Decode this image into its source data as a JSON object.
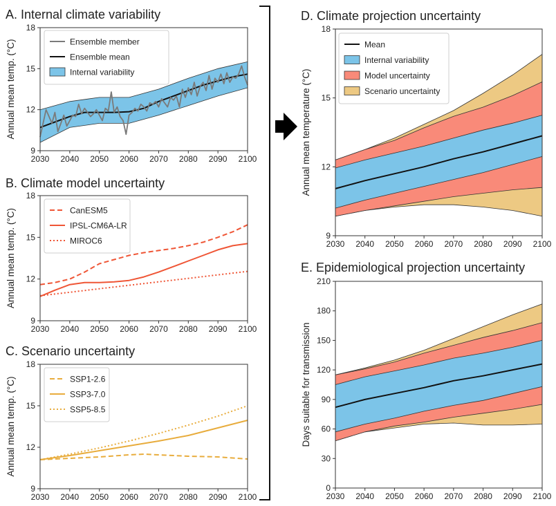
{
  "colors": {
    "internal": "#7cc4e8",
    "model": "#f98a79",
    "scenario": "#edc983",
    "model_line": "#ef5535",
    "scenario_line": "#e8ac3c",
    "member": "#7a7a7a",
    "mean": "#111111"
  },
  "bracket_icon": "bracket",
  "arrow_icon": "right-arrow",
  "chart_data": [
    {
      "id": "A",
      "title": "A. Internal climate variability",
      "type": "line",
      "ylabel": "Annual mean temp. (°C)",
      "xlim": [
        2030,
        2100
      ],
      "ylim": [
        9,
        18
      ],
      "xticks": [
        2030,
        2040,
        2050,
        2060,
        2070,
        2080,
        2090,
        2100
      ],
      "yticks": [
        9,
        12,
        15,
        18
      ],
      "legend_position": "top-left",
      "legend": [
        {
          "label": "Ensemble member",
          "kind": "line",
          "color": "#7a7a7a",
          "dash": "solid"
        },
        {
          "label": "Ensemble mean",
          "kind": "line",
          "color": "#111111",
          "dash": "solid"
        },
        {
          "label": "Internal variability",
          "kind": "patch",
          "color": "#7cc4e8"
        }
      ],
      "bands": [
        {
          "name": "Internal variability",
          "color": "#7cc4e8",
          "x": [
            2030,
            2040,
            2050,
            2060,
            2070,
            2080,
            2090,
            2100
          ],
          "lower": [
            9.6,
            10.7,
            11.0,
            11.0,
            11.6,
            12.3,
            13.0,
            13.6
          ],
          "upper": [
            12.0,
            12.6,
            12.9,
            12.9,
            13.5,
            14.3,
            15.0,
            15.5
          ]
        }
      ],
      "series": [
        {
          "name": "Ensemble mean",
          "color": "#111111",
          "width": 2,
          "dash": "solid",
          "x": [
            2030,
            2035,
            2040,
            2045,
            2050,
            2055,
            2060,
            2065,
            2070,
            2075,
            2080,
            2085,
            2090,
            2095,
            2100
          ],
          "y": [
            10.7,
            11.1,
            11.5,
            11.8,
            11.8,
            11.8,
            11.85,
            12.1,
            12.6,
            13.0,
            13.4,
            13.8,
            14.1,
            14.4,
            14.6
          ]
        },
        {
          "name": "Ensemble member",
          "color": "#7a7a7a",
          "width": 1.8,
          "dash": "solid",
          "x": [
            2030,
            2031,
            2032,
            2033,
            2034,
            2035,
            2036,
            2037,
            2038,
            2039,
            2040,
            2041,
            2042,
            2043,
            2044,
            2045,
            2046,
            2047,
            2048,
            2049,
            2050,
            2051,
            2052,
            2053,
            2054,
            2055,
            2056,
            2057,
            2058,
            2059,
            2060,
            2061,
            2062,
            2063,
            2064,
            2065,
            2066,
            2067,
            2068,
            2069,
            2070,
            2071,
            2072,
            2073,
            2074,
            2075,
            2076,
            2077,
            2078,
            2079,
            2080,
            2081,
            2082,
            2083,
            2084,
            2085,
            2086,
            2087,
            2088,
            2089,
            2090,
            2091,
            2092,
            2093,
            2094,
            2095,
            2096,
            2097,
            2098,
            2099,
            2100
          ],
          "y": [
            10.0,
            11.0,
            12.0,
            11.5,
            11.0,
            11.8,
            10.4,
            11.0,
            11.6,
            10.8,
            11.2,
            11.6,
            11.5,
            12.4,
            11.7,
            12.1,
            11.8,
            11.5,
            11.7,
            12.0,
            11.6,
            11.2,
            12.1,
            11.9,
            13.3,
            11.8,
            12.2,
            11.5,
            11.2,
            10.2,
            11.6,
            11.8,
            12.1,
            11.9,
            12.4,
            12.2,
            11.9,
            12.5,
            12.4,
            12.6,
            12.2,
            12.8,
            12.5,
            12.2,
            12.9,
            12.7,
            13.0,
            12.2,
            13.5,
            12.9,
            13.6,
            13.1,
            14.0,
            13.0,
            13.7,
            14.0,
            13.4,
            14.5,
            13.5,
            14.3,
            14.0,
            14.6,
            13.9,
            14.7,
            14.0,
            14.4,
            14.3,
            14.6,
            15.2,
            14.4,
            13.8
          ]
        }
      ]
    },
    {
      "id": "B",
      "title": "B. Climate model uncertainty",
      "type": "line",
      "ylabel": "Annual mean temp. (°C)",
      "xlim": [
        2030,
        2100
      ],
      "ylim": [
        9,
        18
      ],
      "xticks": [
        2030,
        2040,
        2050,
        2060,
        2070,
        2080,
        2090,
        2100
      ],
      "yticks": [
        9,
        12,
        15,
        18
      ],
      "legend_position": "top-left",
      "legend": [
        {
          "label": "CanESM5",
          "kind": "line",
          "color": "#ef5535",
          "dash": "dashed"
        },
        {
          "label": "IPSL-CM6A-LR",
          "kind": "line",
          "color": "#ef5535",
          "dash": "solid"
        },
        {
          "label": "MIROC6",
          "kind": "line",
          "color": "#ef5535",
          "dash": "dotted"
        }
      ],
      "bands": [],
      "series": [
        {
          "name": "CanESM5",
          "color": "#ef5535",
          "width": 2,
          "dash": "dashed",
          "x": [
            2030,
            2035,
            2040,
            2045,
            2050,
            2055,
            2060,
            2065,
            2070,
            2075,
            2080,
            2085,
            2090,
            2095,
            2100
          ],
          "y": [
            11.6,
            11.75,
            12.0,
            12.5,
            13.1,
            13.4,
            13.7,
            13.9,
            14.05,
            14.2,
            14.4,
            14.65,
            15.0,
            15.4,
            15.9
          ]
        },
        {
          "name": "IPSL-CM6A-LR",
          "color": "#ef5535",
          "width": 2,
          "dash": "solid",
          "x": [
            2030,
            2035,
            2040,
            2045,
            2050,
            2055,
            2060,
            2065,
            2070,
            2075,
            2080,
            2085,
            2090,
            2095,
            2100
          ],
          "y": [
            10.75,
            11.2,
            11.6,
            11.75,
            11.75,
            11.8,
            11.9,
            12.15,
            12.5,
            12.9,
            13.3,
            13.7,
            14.1,
            14.4,
            14.55
          ]
        },
        {
          "name": "MIROC6",
          "color": "#ef5535",
          "width": 2,
          "dash": "dotted",
          "x": [
            2030,
            2040,
            2050,
            2060,
            2070,
            2080,
            2090,
            2100
          ],
          "y": [
            10.8,
            11.05,
            11.3,
            11.55,
            11.8,
            12.05,
            12.3,
            12.55
          ]
        }
      ]
    },
    {
      "id": "C",
      "title": "C. Scenario uncertainty",
      "type": "line",
      "ylabel": "Annual mean temp. (°C)",
      "xlim": [
        2030,
        2100
      ],
      "ylim": [
        9,
        18
      ],
      "xticks": [
        2030,
        2040,
        2050,
        2060,
        2070,
        2080,
        2090,
        2100
      ],
      "yticks": [
        9,
        12,
        15,
        18
      ],
      "legend_position": "top-left",
      "legend": [
        {
          "label": "SSP1-2.6",
          "kind": "line",
          "color": "#e8ac3c",
          "dash": "dashed"
        },
        {
          "label": "SSP3-7.0",
          "kind": "line",
          "color": "#e8ac3c",
          "dash": "solid"
        },
        {
          "label": "SSP5-8.5",
          "kind": "line",
          "color": "#e8ac3c",
          "dash": "dotted"
        }
      ],
      "bands": [],
      "series": [
        {
          "name": "SSP1-2.6",
          "color": "#e8ac3c",
          "width": 2,
          "dash": "dashed",
          "x": [
            2030,
            2040,
            2050,
            2060,
            2065,
            2070,
            2080,
            2090,
            2100
          ],
          "y": [
            11.1,
            11.2,
            11.3,
            11.45,
            11.5,
            11.45,
            11.35,
            11.3,
            11.15
          ]
        },
        {
          "name": "SSP3-7.0",
          "color": "#e8ac3c",
          "width": 2,
          "dash": "solid",
          "x": [
            2030,
            2040,
            2050,
            2060,
            2070,
            2080,
            2090,
            2100
          ],
          "y": [
            11.1,
            11.4,
            11.75,
            12.1,
            12.45,
            12.85,
            13.4,
            13.95
          ]
        },
        {
          "name": "SSP5-8.5",
          "color": "#e8ac3c",
          "width": 2,
          "dash": "dotted",
          "x": [
            2030,
            2040,
            2050,
            2060,
            2070,
            2080,
            2090,
            2100
          ],
          "y": [
            11.1,
            11.5,
            11.95,
            12.45,
            13.0,
            13.6,
            14.25,
            15.0
          ]
        }
      ]
    },
    {
      "id": "D",
      "title": "D. Climate projection uncertainty",
      "type": "area",
      "ylabel": "Annual mean temperature (°C)",
      "xlim": [
        2030,
        2100
      ],
      "ylim": [
        9,
        18
      ],
      "xticks": [
        2030,
        2040,
        2050,
        2060,
        2070,
        2080,
        2090,
        2100
      ],
      "yticks": [
        9,
        12,
        15,
        18
      ],
      "legend_position": "top-left",
      "legend": [
        {
          "label": "Mean",
          "kind": "line",
          "color": "#111111",
          "dash": "solid"
        },
        {
          "label": "Internal variability",
          "kind": "patch",
          "color": "#7cc4e8"
        },
        {
          "label": "Model uncertainty",
          "kind": "patch",
          "color": "#f98a79"
        },
        {
          "label": "Scenario uncertainty",
          "kind": "patch",
          "color": "#edc983"
        }
      ],
      "bands": [
        {
          "name": "Scenario uncertainty",
          "color": "#edc983",
          "x": [
            2030,
            2040,
            2050,
            2060,
            2070,
            2080,
            2090,
            2100
          ],
          "lower": [
            9.85,
            10.1,
            10.25,
            10.35,
            10.35,
            10.25,
            10.1,
            9.85
          ],
          "upper": [
            12.3,
            12.75,
            13.25,
            13.85,
            14.45,
            15.2,
            16.0,
            16.9
          ]
        },
        {
          "name": "Model uncertainty",
          "color": "#f98a79",
          "x": [
            2030,
            2040,
            2050,
            2060,
            2070,
            2080,
            2090,
            2100
          ],
          "lower": [
            9.85,
            10.1,
            10.3,
            10.5,
            10.7,
            10.85,
            11.0,
            11.1
          ],
          "upper": [
            12.3,
            12.75,
            13.15,
            13.7,
            14.2,
            14.6,
            15.1,
            15.7
          ]
        },
        {
          "name": "Internal variability",
          "color": "#7cc4e8",
          "x": [
            2030,
            2040,
            2050,
            2060,
            2070,
            2080,
            2090,
            2100
          ],
          "lower": [
            10.2,
            10.55,
            10.85,
            11.15,
            11.45,
            11.75,
            12.1,
            12.45
          ],
          "upper": [
            11.95,
            12.3,
            12.6,
            12.9,
            13.25,
            13.6,
            13.9,
            14.25
          ]
        }
      ],
      "series": [
        {
          "name": "Mean",
          "color": "#111111",
          "width": 2,
          "dash": "solid",
          "x": [
            2030,
            2040,
            2050,
            2060,
            2070,
            2080,
            2090,
            2100
          ],
          "y": [
            11.05,
            11.4,
            11.7,
            12.0,
            12.35,
            12.65,
            13.0,
            13.35
          ]
        }
      ]
    },
    {
      "id": "E",
      "title": "E. Epidemiological projection uncertainty",
      "type": "area",
      "ylabel": "Days suitable for transmission",
      "xlim": [
        2030,
        2100
      ],
      "ylim": [
        0,
        210
      ],
      "xticks": [
        2030,
        2040,
        2050,
        2060,
        2070,
        2080,
        2090,
        2100
      ],
      "yticks": [
        0,
        30,
        60,
        90,
        120,
        150,
        180,
        210
      ],
      "legend": [],
      "bands": [
        {
          "name": "Scenario uncertainty",
          "color": "#edc983",
          "x": [
            2030,
            2040,
            2050,
            2060,
            2070,
            2080,
            2090,
            2100
          ],
          "lower": [
            48,
            57,
            61,
            65,
            66,
            64,
            64,
            65
          ],
          "upper": [
            115,
            122,
            130,
            140,
            152,
            164,
            176,
            187
          ]
        },
        {
          "name": "Model uncertainty",
          "color": "#f98a79",
          "x": [
            2030,
            2040,
            2050,
            2060,
            2070,
            2080,
            2090,
            2100
          ],
          "lower": [
            48,
            57,
            63,
            67,
            72,
            76,
            80,
            85
          ],
          "upper": [
            115,
            121,
            128,
            137,
            145,
            153,
            160,
            168
          ]
        },
        {
          "name": "Internal variability",
          "color": "#7cc4e8",
          "x": [
            2030,
            2040,
            2050,
            2060,
            2070,
            2080,
            2090,
            2100
          ],
          "lower": [
            57,
            65,
            71,
            78,
            84,
            89,
            96,
            103
          ],
          "upper": [
            105,
            113,
            119,
            125,
            132,
            137,
            143,
            150
          ]
        }
      ],
      "series": [
        {
          "name": "Mean",
          "color": "#111111",
          "width": 2,
          "dash": "solid",
          "x": [
            2030,
            2040,
            2050,
            2060,
            2070,
            2080,
            2090,
            2100
          ],
          "y": [
            82,
            90,
            96,
            102,
            109,
            114,
            120,
            126
          ]
        }
      ]
    }
  ]
}
